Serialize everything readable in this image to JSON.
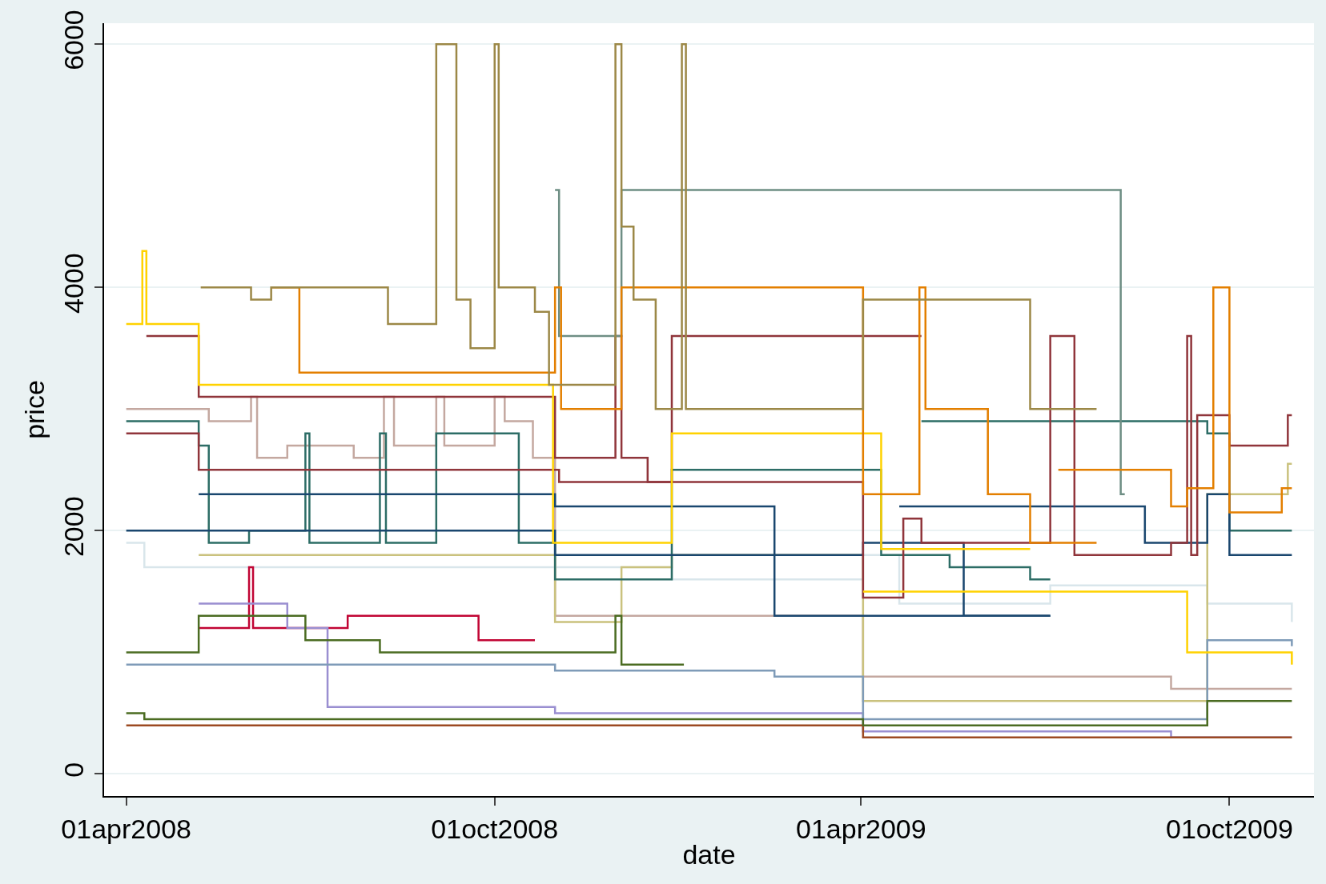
{
  "chart_data": {
    "type": "step",
    "xlabel": "date",
    "ylabel": "price",
    "xlim": [
      "2008-03-21",
      "2009-11-12"
    ],
    "ylim": [
      -181,
      6172
    ],
    "xticks": [
      {
        "value": "2008-04-01",
        "label": "01apr2008"
      },
      {
        "value": "2008-10-01",
        "label": "01oct2008"
      },
      {
        "value": "2009-04-01",
        "label": "01apr2009"
      },
      {
        "value": "2009-10-01",
        "label": "01oct2009"
      }
    ],
    "yticks": [
      0,
      2000,
      4000,
      6000
    ],
    "grid": "y",
    "series": [
      {
        "color": "#c4a8a0",
        "x": [
          "2008-04-01",
          "2008-05-12",
          "2008-06-02",
          "2008-06-05",
          "2008-06-20",
          "2008-07-23",
          "2008-08-07",
          "2008-08-12",
          "2008-09-02",
          "2008-09-06",
          "2008-10-01",
          "2008-10-06",
          "2008-10-20",
          "2008-10-31",
          "2009-04-02",
          "2009-09-02",
          "2009-11-01"
        ],
        "values": [
          3000,
          2900,
          3100,
          2600,
          2700,
          2600,
          3100,
          2700,
          3100,
          2700,
          3100,
          2900,
          2600,
          1300,
          800,
          700,
          700
        ]
      },
      {
        "color": "#d9e6eb",
        "x": [
          "2008-04-01",
          "2008-04-10",
          "2008-12-28",
          "2009-04-02",
          "2009-04-20",
          "2009-07-04",
          "2009-09-20",
          "2009-11-01"
        ],
        "values": [
          1900,
          1700,
          1600,
          1800,
          1400,
          1550,
          1400,
          1250
        ]
      },
      {
        "color": "#cac27e",
        "x": [
          "2008-05-07",
          "2008-10-31",
          "2008-12-03",
          "2008-12-28",
          "2009-04-02",
          "2009-09-20",
          "2009-10-30",
          "2009-11-01"
        ],
        "values": [
          1800,
          1250,
          1700,
          1800,
          600,
          2300,
          2550,
          2550
        ]
      },
      {
        "color": "#c10534",
        "x": [
          "2008-05-07",
          "2008-06-01",
          "2008-06-03",
          "2008-07-20",
          "2008-09-23",
          "2008-10-21"
        ],
        "values": [
          1200,
          1700,
          1200,
          1300,
          1100,
          1100
        ]
      },
      {
        "color": "#9a8fd1",
        "x": [
          "2008-05-07",
          "2008-06-20",
          "2008-07-10",
          "2008-10-31",
          "2009-04-02",
          "2009-09-02",
          "2009-11-01"
        ],
        "values": [
          1400,
          1200,
          550,
          500,
          350,
          300,
          300
        ]
      },
      {
        "color": "#7f9bb8",
        "x": [
          "2008-04-01",
          "2008-10-31",
          "2009-02-17",
          "2009-04-02",
          "2009-09-20",
          "2009-11-01"
        ],
        "values": [
          900,
          850,
          800,
          450,
          1100,
          1050
        ]
      },
      {
        "color": "#9c4a22",
        "x": [
          "2008-04-01",
          "2009-04-02",
          "2009-11-01"
        ],
        "values": [
          400,
          300,
          300
        ]
      },
      {
        "color": "#4b6c22",
        "x": [
          "2008-04-01",
          "2008-05-07",
          "2008-06-29",
          "2008-08-05",
          "2008-10-31",
          "2008-11-30",
          "2008-12-03",
          "2009-01-03"
        ],
        "values": [
          1000,
          1300,
          1100,
          1000,
          1000,
          1300,
          900,
          900
        ]
      },
      {
        "color": "#4b6c22",
        "x": [
          "2008-04-01",
          "2008-04-10",
          "2009-04-02",
          "2009-09-20",
          "2009-11-01"
        ],
        "values": [
          500,
          450,
          400,
          600,
          600
        ]
      },
      {
        "color": "#2d6d66",
        "x": [
          "2008-04-01",
          "2008-05-07",
          "2008-05-12",
          "2008-06-01",
          "2008-06-29",
          "2008-07-01",
          "2008-08-05",
          "2008-08-08",
          "2008-09-02",
          "2008-10-13",
          "2008-10-31",
          "2008-12-28",
          "2009-04-11",
          "2009-05-15",
          "2009-06-24",
          "2009-07-04"
        ],
        "values": [
          2900,
          2700,
          1900,
          2000,
          2800,
          1900,
          2800,
          1900,
          2800,
          1900,
          1600,
          2500,
          1800,
          1700,
          1600,
          1600
        ]
      },
      {
        "color": "#2d6d66",
        "x": [
          "2009-05-01",
          "2009-08-20",
          "2009-09-20",
          "2009-10-01",
          "2009-11-01"
        ],
        "values": [
          2900,
          2900,
          2800,
          2000,
          2000
        ]
      },
      {
        "color": "#1a476f",
        "x": [
          "2008-05-07",
          "2008-10-31",
          "2009-02-17",
          "2009-07-04"
        ],
        "values": [
          2300,
          2200,
          1300,
          1300
        ]
      },
      {
        "color": "#1a476f",
        "x": [
          "2008-04-01",
          "2008-10-31",
          "2009-04-02",
          "2009-05-22",
          "2009-07-04"
        ],
        "values": [
          2000,
          1800,
          1900,
          1300,
          1300
        ]
      },
      {
        "color": "#1a476f",
        "x": [
          "2009-04-20",
          "2009-08-20",
          "2009-09-20",
          "2009-10-01",
          "2009-11-01"
        ],
        "values": [
          2200,
          1900,
          2300,
          1800,
          1800
        ]
      },
      {
        "color": "#90353b",
        "x": [
          "2008-04-11",
          "2008-05-07",
          "2008-10-31",
          "2008-11-30",
          "2008-12-03",
          "2008-12-16",
          "2008-12-28",
          "2009-05-01"
        ],
        "values": [
          3600,
          3100,
          2600,
          3600,
          2600,
          2400,
          3600,
          3600
        ]
      },
      {
        "color": "#90353b",
        "x": [
          "2008-04-01",
          "2008-05-07",
          "2008-11-02",
          "2009-04-02",
          "2009-04-22",
          "2009-05-01",
          "2009-07-04",
          "2009-07-16",
          "2009-09-02",
          "2009-09-10",
          "2009-09-12",
          "2009-09-15",
          "2009-10-01",
          "2009-10-30",
          "2009-11-01"
        ],
        "values": [
          2800,
          2500,
          2400,
          1450,
          2100,
          1900,
          3600,
          1800,
          1900,
          3600,
          1800,
          2950,
          2700,
          2950,
          2950
        ]
      },
      {
        "color": "#6e8e84",
        "x": [
          "2008-10-31",
          "2008-11-02",
          "2008-12-03",
          "2009-08-08",
          "2009-08-10"
        ],
        "values": [
          4800,
          3600,
          4800,
          2300,
          2300
        ]
      },
      {
        "color": "#ffd200",
        "x": [
          "2008-04-01",
          "2008-04-09",
          "2008-04-11",
          "2008-05-07",
          "2008-10-30",
          "2008-12-28",
          "2009-04-11",
          "2009-06-24"
        ],
        "values": [
          3700,
          4300,
          3700,
          3200,
          1900,
          2800,
          1850,
          1850
        ]
      },
      {
        "color": "#ffd200",
        "x": [
          "2009-04-02",
          "2009-09-02",
          "2009-09-10",
          "2009-11-01"
        ],
        "values": [
          1500,
          1500,
          1000,
          900
        ]
      },
      {
        "color": "#e37f00",
        "x": [
          "2008-06-12",
          "2008-06-26",
          "2008-10-31",
          "2008-11-03",
          "2008-12-03",
          "2009-04-02",
          "2009-04-30",
          "2009-05-03",
          "2009-06-03",
          "2009-06-24",
          "2009-07-27"
        ],
        "values": [
          4000,
          3300,
          4000,
          3000,
          4000,
          2300,
          4000,
          3000,
          2300,
          1900,
          1900
        ]
      },
      {
        "color": "#e37f00",
        "x": [
          "2009-07-08",
          "2009-09-02",
          "2009-09-10",
          "2009-09-23",
          "2009-10-01",
          "2009-10-27",
          "2009-11-01"
        ],
        "values": [
          2500,
          2200,
          2350,
          4000,
          2150,
          2350,
          2350
        ]
      },
      {
        "color": "#9c8847",
        "x": [
          "2008-05-08",
          "2008-06-02",
          "2008-06-12",
          "2008-08-09",
          "2008-09-02",
          "2008-09-12",
          "2008-09-19",
          "2008-10-01",
          "2008-10-03",
          "2008-10-21",
          "2008-10-28",
          "2008-11-30",
          "2008-12-03",
          "2008-12-09",
          "2008-12-20",
          "2009-01-02",
          "2009-01-04",
          "2009-04-02",
          "2009-06-24",
          "2009-07-27"
        ],
        "values": [
          4000,
          3900,
          4000,
          3700,
          6000,
          3900,
          3500,
          6000,
          4000,
          3800,
          3200,
          6000,
          4500,
          3900,
          3000,
          6000,
          3000,
          3900,
          3000,
          3000
        ]
      }
    ]
  }
}
